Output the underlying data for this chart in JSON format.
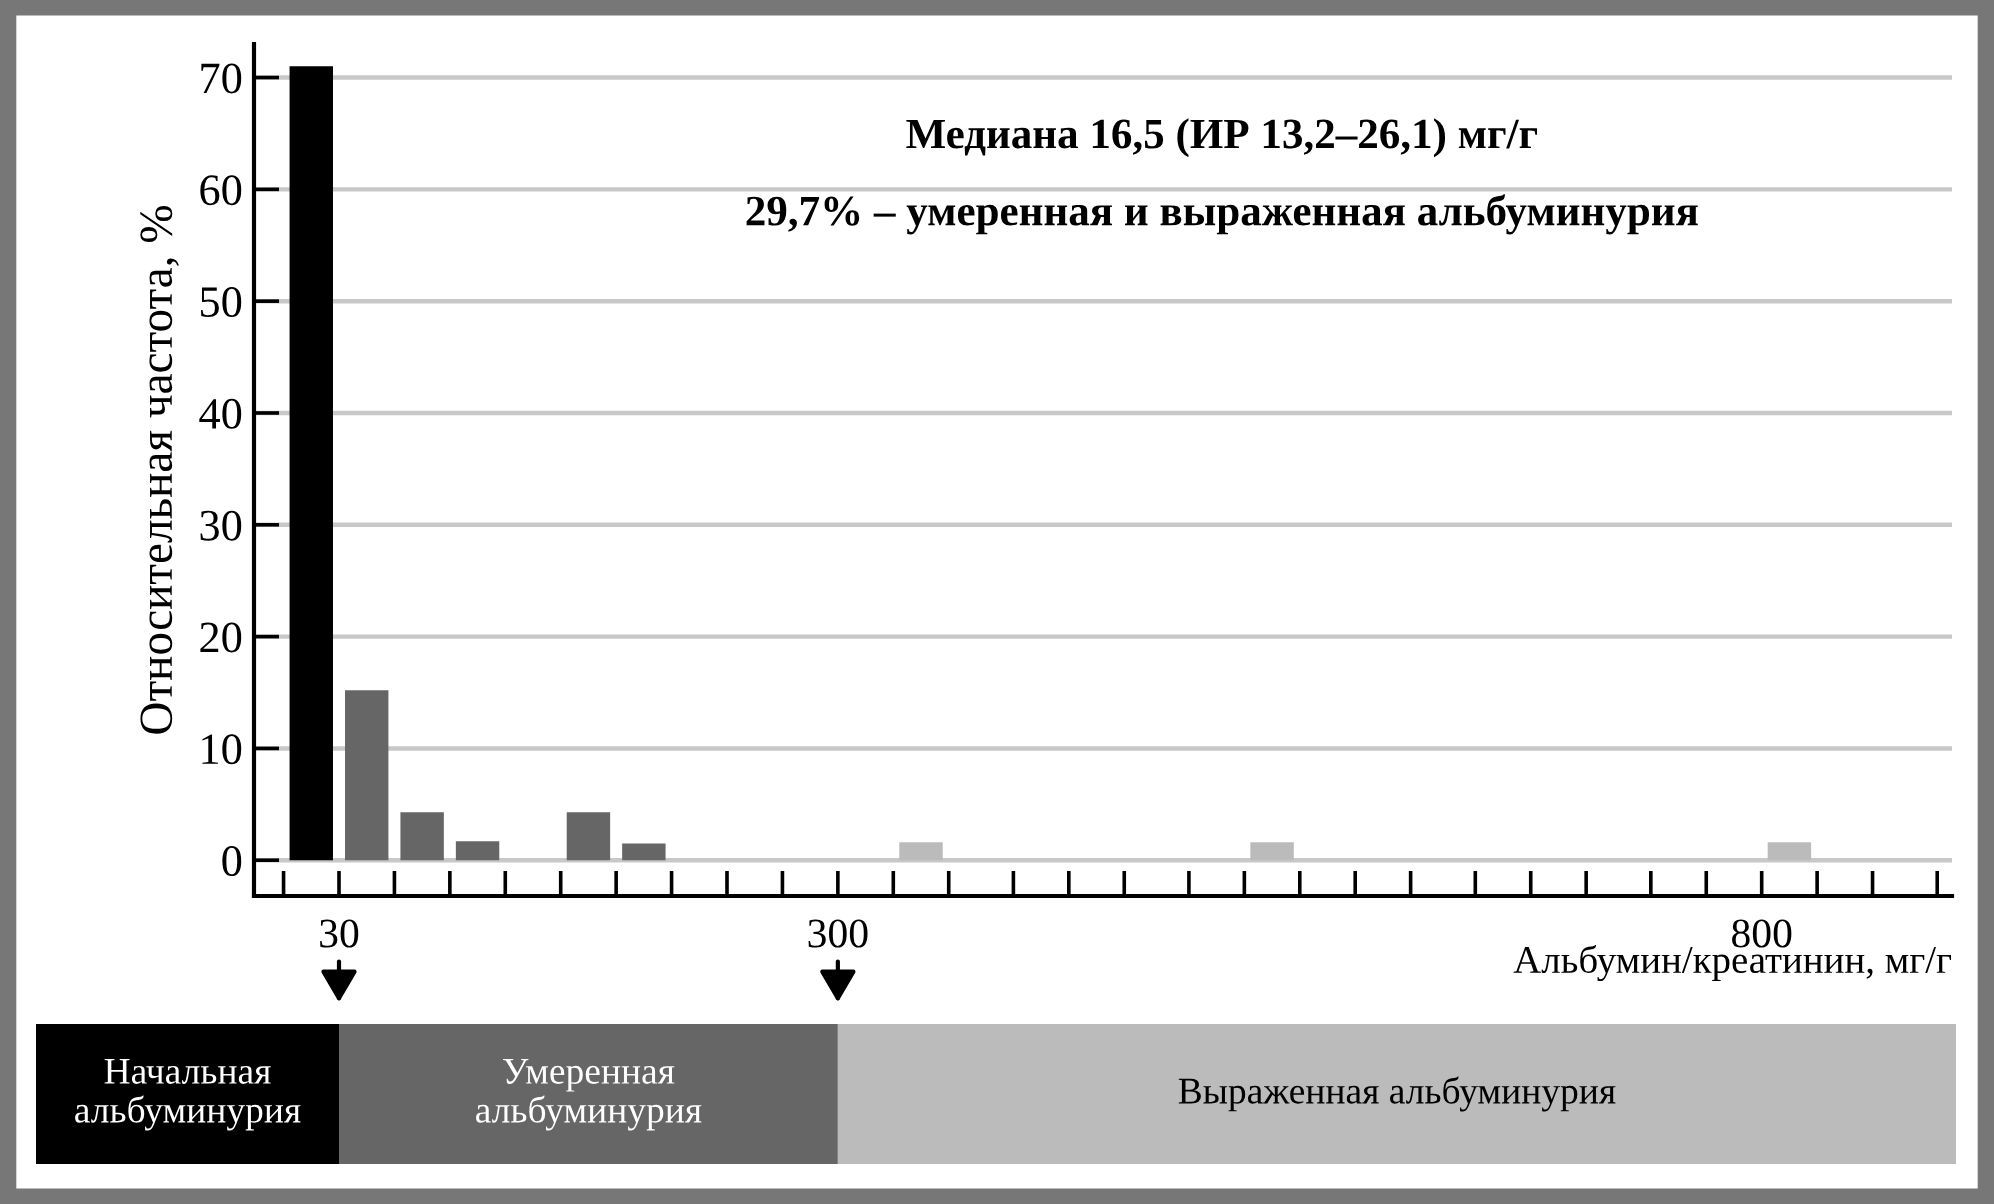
{
  "chart_data": {
    "type": "histogram",
    "bins": [
      0,
      30,
      60,
      90,
      120,
      150,
      180,
      210,
      330,
      360,
      520,
      550,
      800,
      830
    ],
    "values": [
      71,
      15.2,
      4.3,
      1.7,
      0,
      4.3,
      1.5,
      0,
      1.6,
      0,
      1.6,
      0,
      1.6
    ],
    "colors": [
      "#000000",
      "#666666",
      "#666666",
      "#666666",
      "#666666",
      "#666666",
      "#666666",
      "#666666",
      "#bbbbbb",
      "#bbbbbb",
      "#bbbbbb",
      "#bbbbbb",
      "#bbbbbb"
    ],
    "xlabel": "Альбумин/креатинин, мг/г",
    "ylabel": "Относительная частота, %",
    "xlim": [
      -16,
      903
    ],
    "xticks": [
      {
        "value": 0,
        "label": null
      },
      30,
      {
        "value": 60,
        "label": null
      },
      {
        "value": 90,
        "label": null
      },
      {
        "value": 120,
        "label": null
      },
      {
        "value": 150,
        "label": null
      },
      {
        "value": 180,
        "label": null
      },
      {
        "value": 210,
        "label": null
      },
      {
        "value": 240,
        "label": null
      },
      {
        "value": 270,
        "label": null
      },
      300,
      {
        "value": 330,
        "label": null
      },
      {
        "value": 360,
        "label": null
      },
      {
        "value": 395,
        "label": null
      },
      {
        "value": 425,
        "label": null
      },
      {
        "value": 455,
        "label": null
      },
      {
        "value": 490,
        "label": null
      },
      {
        "value": 520,
        "label": null
      },
      {
        "value": 550,
        "label": null
      },
      {
        "value": 580,
        "label": null
      },
      {
        "value": 610,
        "label": null
      },
      {
        "value": 645,
        "label": null
      },
      {
        "value": 675,
        "label": null
      },
      {
        "value": 705,
        "label": null
      },
      {
        "value": 740,
        "label": null
      },
      {
        "value": 770,
        "label": null
      },
      800,
      {
        "value": 830,
        "label": null
      },
      {
        "value": 860,
        "label": null
      },
      {
        "value": 895,
        "label": null
      }
    ],
    "ylim": [
      -3.2,
      73
    ],
    "yticks": [
      0,
      10,
      20,
      30,
      40,
      50,
      60,
      70
    ],
    "grid": "y",
    "annotations": [
      "Медиана 16,5 (ИР 13,2–26,1) мг/г",
      "29,7% – умеренная и выраженная альбуминурия",
      "Начальная\nальбуминурия",
      "Умеренная\nальбуминурия",
      "Выраженная альбуминурия"
    ]
  }
}
